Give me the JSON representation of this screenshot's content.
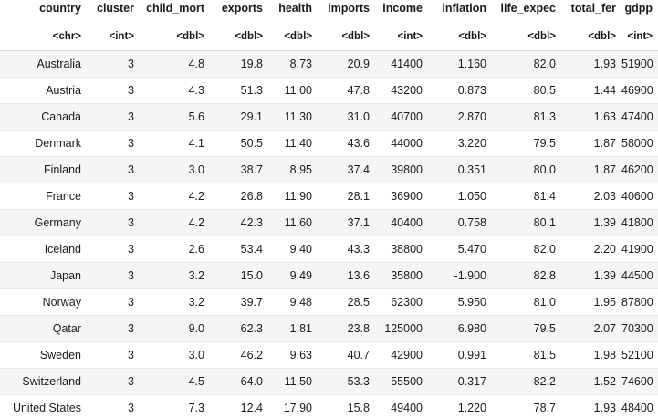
{
  "table": {
    "columns": [
      "country",
      "cluster",
      "child_mort",
      "exports",
      "health",
      "imports",
      "income",
      "inflation",
      "life_expec",
      "total_fer",
      "gdpp"
    ],
    "types": [
      "<chr>",
      "<int>",
      "<dbl>",
      "<dbl>",
      "<dbl>",
      "<dbl>",
      "<int>",
      "<dbl>",
      "<dbl>",
      "<dbl>",
      "<int>"
    ],
    "rows": [
      [
        "Australia",
        "3",
        "4.8",
        "19.8",
        "8.73",
        "20.9",
        "41400",
        "1.160",
        "82.0",
        "1.93",
        "51900"
      ],
      [
        "Austria",
        "3",
        "4.3",
        "51.3",
        "11.00",
        "47.8",
        "43200",
        "0.873",
        "80.5",
        "1.44",
        "46900"
      ],
      [
        "Canada",
        "3",
        "5.6",
        "29.1",
        "11.30",
        "31.0",
        "40700",
        "2.870",
        "81.3",
        "1.63",
        "47400"
      ],
      [
        "Denmark",
        "3",
        "4.1",
        "50.5",
        "11.40",
        "43.6",
        "44000",
        "3.220",
        "79.5",
        "1.87",
        "58000"
      ],
      [
        "Finland",
        "3",
        "3.0",
        "38.7",
        "8.95",
        "37.4",
        "39800",
        "0.351",
        "80.0",
        "1.87",
        "46200"
      ],
      [
        "France",
        "3",
        "4.2",
        "26.8",
        "11.90",
        "28.1",
        "36900",
        "1.050",
        "81.4",
        "2.03",
        "40600"
      ],
      [
        "Germany",
        "3",
        "4.2",
        "42.3",
        "11.60",
        "37.1",
        "40400",
        "0.758",
        "80.1",
        "1.39",
        "41800"
      ],
      [
        "Iceland",
        "3",
        "2.6",
        "53.4",
        "9.40",
        "43.3",
        "38800",
        "5.470",
        "82.0",
        "2.20",
        "41900"
      ],
      [
        "Japan",
        "3",
        "3.2",
        "15.0",
        "9.49",
        "13.6",
        "35800",
        "-1.900",
        "82.8",
        "1.39",
        "44500"
      ],
      [
        "Norway",
        "3",
        "3.2",
        "39.7",
        "9.48",
        "28.5",
        "62300",
        "5.950",
        "81.0",
        "1.95",
        "87800"
      ],
      [
        "Qatar",
        "3",
        "9.0",
        "62.3",
        "1.81",
        "23.8",
        "125000",
        "6.980",
        "79.5",
        "2.07",
        "70300"
      ],
      [
        "Sweden",
        "3",
        "3.0",
        "46.2",
        "9.63",
        "40.7",
        "42900",
        "0.991",
        "81.5",
        "1.98",
        "52100"
      ],
      [
        "Switzerland",
        "3",
        "4.5",
        "64.0",
        "11.50",
        "53.3",
        "55500",
        "0.317",
        "82.2",
        "1.52",
        "74600"
      ],
      [
        "United States",
        "3",
        "7.3",
        "12.4",
        "17.90",
        "15.8",
        "49400",
        "1.220",
        "78.7",
        "1.93",
        "48400"
      ]
    ]
  }
}
